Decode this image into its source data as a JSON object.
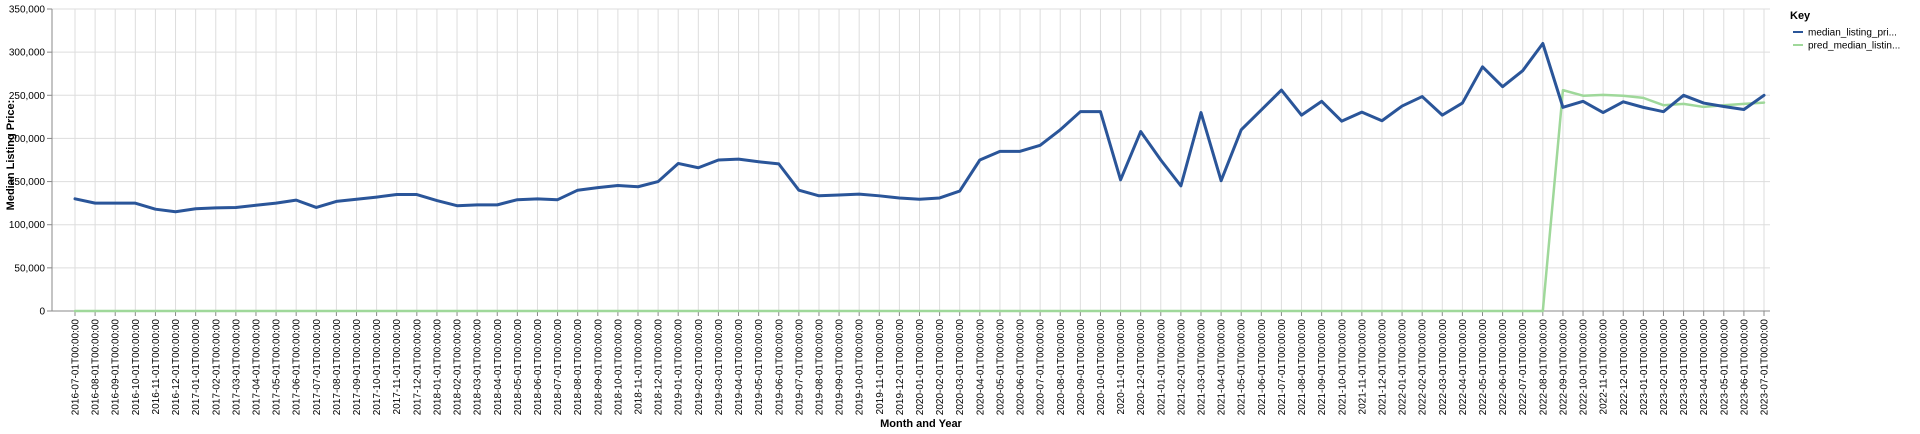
{
  "chart_data": {
    "type": "line",
    "xlabel": "Month and Year",
    "ylabel": "Median Listing Price:",
    "ylim": [
      0,
      350000
    ],
    "yticks": [
      "0",
      "50,000",
      "100,000",
      "150,000",
      "200,000",
      "250,000",
      "300,000",
      "350,000"
    ],
    "grid": true,
    "legend": {
      "title": "Key",
      "position": "top-right"
    },
    "colors": [
      "#2a5599",
      "#9fd89a"
    ],
    "x": [
      "2016-07-01T00:00:00",
      "2016-08-01T00:00:00",
      "2016-09-01T00:00:00",
      "2016-10-01T00:00:00",
      "2016-11-01T00:00:00",
      "2016-12-01T00:00:00",
      "2017-01-01T00:00:00",
      "2017-02-01T00:00:00",
      "2017-03-01T00:00:00",
      "2017-04-01T00:00:00",
      "2017-05-01T00:00:00",
      "2017-06-01T00:00:00",
      "2017-07-01T00:00:00",
      "2017-08-01T00:00:00",
      "2017-09-01T00:00:00",
      "2017-10-01T00:00:00",
      "2017-11-01T00:00:00",
      "2017-12-01T00:00:00",
      "2018-01-01T00:00:00",
      "2018-02-01T00:00:00",
      "2018-03-01T00:00:00",
      "2018-04-01T00:00:00",
      "2018-05-01T00:00:00",
      "2018-06-01T00:00:00",
      "2018-07-01T00:00:00",
      "2018-08-01T00:00:00",
      "2018-09-01T00:00:00",
      "2018-10-01T00:00:00",
      "2018-11-01T00:00:00",
      "2018-12-01T00:00:00",
      "2019-01-01T00:00:00",
      "2019-02-01T00:00:00",
      "2019-03-01T00:00:00",
      "2019-04-01T00:00:00",
      "2019-05-01T00:00:00",
      "2019-06-01T00:00:00",
      "2019-07-01T00:00:00",
      "2019-08-01T00:00:00",
      "2019-09-01T00:00:00",
      "2019-10-01T00:00:00",
      "2019-11-01T00:00:00",
      "2019-12-01T00:00:00",
      "2020-01-01T00:00:00",
      "2020-02-01T00:00:00",
      "2020-03-01T00:00:00",
      "2020-04-01T00:00:00",
      "2020-05-01T00:00:00",
      "2020-06-01T00:00:00",
      "2020-07-01T00:00:00",
      "2020-08-01T00:00:00",
      "2020-09-01T00:00:00",
      "2020-10-01T00:00:00",
      "2020-11-01T00:00:00",
      "2020-12-01T00:00:00",
      "2021-01-01T00:00:00",
      "2021-02-01T00:00:00",
      "2021-03-01T00:00:00",
      "2021-04-01T00:00:00",
      "2021-05-01T00:00:00",
      "2021-06-01T00:00:00",
      "2021-07-01T00:00:00",
      "2021-08-01T00:00:00",
      "2021-09-01T00:00:00",
      "2021-10-01T00:00:00",
      "2021-11-01T00:00:00",
      "2021-12-01T00:00:00",
      "2022-01-01T00:00:00",
      "2022-02-01T00:00:00",
      "2022-03-01T00:00:00",
      "2022-04-01T00:00:00",
      "2022-05-01T00:00:00",
      "2022-06-01T00:00:00",
      "2022-07-01T00:00:00",
      "2022-08-01T00:00:00",
      "2022-09-01T00:00:00",
      "2022-10-01T00:00:00",
      "2022-11-01T00:00:00",
      "2022-12-01T00:00:00",
      "2023-01-01T00:00:00",
      "2023-02-01T00:00:00",
      "2023-03-01T00:00:00",
      "2023-04-01T00:00:00",
      "2023-05-01T00:00:00",
      "2023-06-01T00:00:00",
      "2023-07-01T00:00:00"
    ],
    "series": [
      {
        "name": "median_listing_pri...",
        "values": [
          130000,
          125000,
          125000,
          125000,
          118000,
          115000,
          118500,
          119500,
          120000,
          122500,
          125000,
          128500,
          120000,
          127000,
          129500,
          132000,
          135000,
          135000,
          128000,
          122000,
          123000,
          123000,
          129000,
          130000,
          129000,
          140000,
          143000,
          145500,
          144000,
          150000,
          171000,
          166000,
          175000,
          176000,
          173000,
          170500,
          140000,
          133500,
          134500,
          135500,
          133500,
          131000,
          129500,
          131000,
          139000,
          175000,
          185000,
          185000,
          192000,
          210000,
          231000,
          231000,
          152000,
          208000,
          175000,
          145000,
          230000,
          151000,
          210000,
          233000,
          256000,
          227000,
          243000,
          220000,
          230500,
          220500,
          237500,
          248500,
          227000,
          241000,
          283000,
          260000,
          278500,
          310000,
          236000,
          243000,
          230000,
          242500,
          236000,
          231000,
          250000,
          241000,
          237000,
          233500,
          250000
        ]
      },
      {
        "name": "pred_median_listin...",
        "values": [
          0,
          0,
          0,
          0,
          0,
          0,
          0,
          0,
          0,
          0,
          0,
          0,
          0,
          0,
          0,
          0,
          0,
          0,
          0,
          0,
          0,
          0,
          0,
          0,
          0,
          0,
          0,
          0,
          0,
          0,
          0,
          0,
          0,
          0,
          0,
          0,
          0,
          0,
          0,
          0,
          0,
          0,
          0,
          0,
          0,
          0,
          0,
          0,
          0,
          0,
          0,
          0,
          0,
          0,
          0,
          0,
          0,
          0,
          0,
          0,
          0,
          0,
          0,
          0,
          0,
          0,
          0,
          0,
          0,
          0,
          0,
          0,
          0,
          0,
          256000,
          249500,
          250500,
          249500,
          247000,
          238500,
          240000,
          236500,
          238500,
          240000,
          241500
        ]
      }
    ]
  }
}
